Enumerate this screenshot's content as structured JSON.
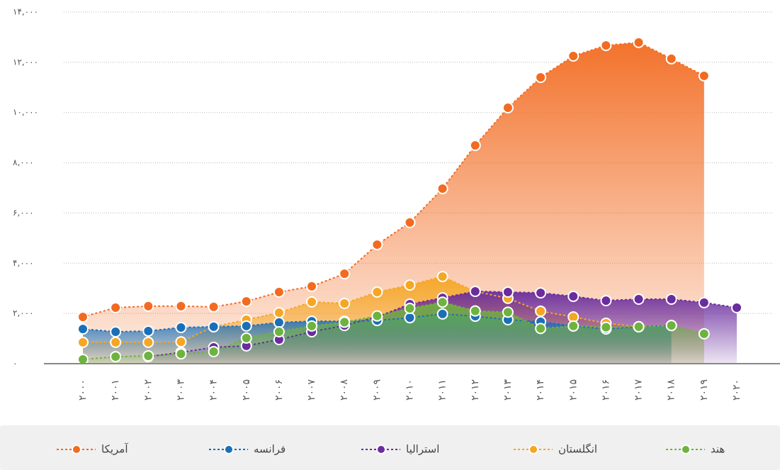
{
  "chart_data": {
    "type": "area",
    "categories": [
      "۲۰۰۰",
      "۲۰۰۱",
      "۲۰۰۲",
      "۲۰۰۳",
      "۲۰۰۴",
      "۲۰۰۵",
      "۲۰۰۶",
      "۲۰۰۷",
      "۲۰۰۸",
      "۲۰۰۹",
      "۲۰۱۰",
      "۲۰۱۱",
      "۲۰۱۲",
      "۲۰۱۳",
      "۲۰۱۴",
      "۲۰۱۵",
      "۲۰۱۶",
      "۲۰۱۷",
      "۲۰۱۸",
      "۲۰۱۹",
      "۲۰۲۰"
    ],
    "series": [
      {
        "name": "آمریکا",
        "color": "#f26b21",
        "values": [
          1860,
          2230,
          2290,
          2290,
          2260,
          2480,
          2850,
          3080,
          3580,
          4740,
          5620,
          6970,
          8690,
          10190,
          11400,
          12250,
          12670,
          12790,
          12140,
          11460,
          null
        ]
      },
      {
        "name": "فرانسه",
        "color": "#1a6fb8",
        "values": [
          1380,
          1270,
          1300,
          1440,
          1470,
          1500,
          1640,
          1690,
          1690,
          1720,
          1830,
          1980,
          1890,
          1750,
          1670,
          1500,
          1380,
          1470,
          1520,
          null,
          null
        ]
      },
      {
        "name": "استرالیا",
        "color": "#6a2c9e",
        "values": [
          null,
          null,
          280,
          450,
          650,
          710,
          960,
          1270,
          1520,
          1860,
          2370,
          2620,
          2880,
          2850,
          2820,
          2680,
          2510,
          2570,
          2570,
          2430,
          2230
        ]
      },
      {
        "name": "انگلستان",
        "color": "#f5a623",
        "values": [
          850,
          850,
          850,
          870,
          1470,
          1750,
          2030,
          2460,
          2400,
          2850,
          3130,
          3470,
          2880,
          2600,
          2090,
          1860,
          1610,
          1470,
          1520,
          null,
          null
        ]
      },
      {
        "name": "هند",
        "color": "#6db33f",
        "values": [
          170,
          280,
          310,
          390,
          480,
          1020,
          1270,
          1500,
          1650,
          1900,
          2200,
          2450,
          2100,
          2050,
          1400,
          1500,
          1450,
          1470,
          1520,
          1190,
          null
        ]
      }
    ],
    "ylim": [
      0,
      14000
    ],
    "yticks": [
      {
        "value": 0,
        "label": "۰"
      },
      {
        "value": 2000,
        "label": "۲,۰۰۰"
      },
      {
        "value": 4000,
        "label": "۴,۰۰۰"
      },
      {
        "value": 6000,
        "label": "۶,۰۰۰"
      },
      {
        "value": 8000,
        "label": "۸,۰۰۰"
      },
      {
        "value": 10000,
        "label": "۱۰,۰۰۰"
      },
      {
        "value": 12000,
        "label": "۱۲,۰۰۰"
      },
      {
        "value": 14000,
        "label": "۱۴,۰۰۰"
      }
    ],
    "grid": true,
    "legend": "bottom"
  }
}
